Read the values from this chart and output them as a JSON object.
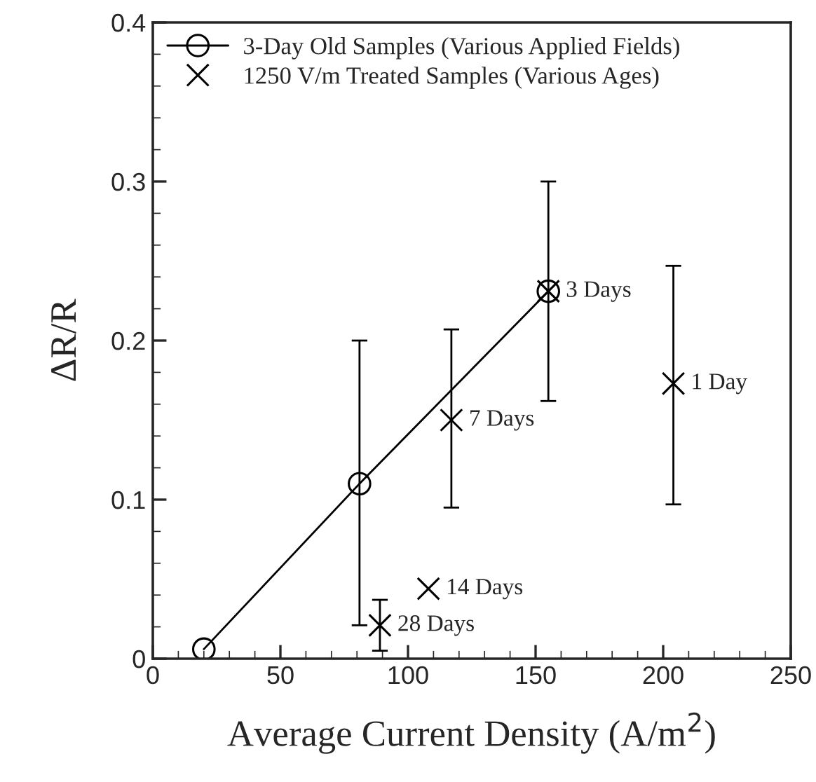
{
  "chart_data": {
    "type": "line",
    "xlabel": "Average Current Density (A/m$^{2}$)",
    "ylabel": "ΔR/R",
    "series": [
      {
        "name": "3-Day Old Samples (Various Applied Fields)",
        "color": "#000000",
        "marker": "circle",
        "x": [
          20,
          81,
          155
        ],
        "values": [
          0.006,
          0.11,
          0.231
        ],
        "errors": [
          null,
          [
            0.021,
            0.2
          ],
          null
        ]
      },
      {
        "name": "1250 V/m Treated Samples (Various Ages)",
        "type": "scatter",
        "color": "#000000",
        "marker": "cross",
        "x": [
          117,
          108,
          89,
          204,
          155
        ],
        "values": [
          0.15,
          0.044,
          0.021,
          0.173,
          0.231
        ],
        "errors": [
          [
            0.095,
            0.207
          ],
          null,
          [
            0.005,
            0.037
          ],
          [
            0.097,
            0.247
          ],
          [
            0.162,
            0.3
          ]
        ]
      }
    ],
    "annotations": [
      {
        "text": "3 Days",
        "x": 155,
        "y": 0.231
      },
      {
        "text": "7 Days",
        "x": 117,
        "y": 0.15
      },
      {
        "text": "14 Days",
        "x": 108,
        "y": 0.044
      },
      {
        "text": "28 Days",
        "x": 89,
        "y": 0.021
      },
      {
        "text": "1 Day",
        "x": 204,
        "y": 0.173
      }
    ],
    "xlim": [
      0,
      250
    ],
    "xticks": [
      0,
      50,
      100,
      150,
      200,
      250
    ],
    "ylim": [
      0,
      0.4
    ],
    "yticks": [
      0,
      0.1,
      0.2,
      0.3,
      0.4
    ],
    "grid": false,
    "legend": "top left"
  }
}
